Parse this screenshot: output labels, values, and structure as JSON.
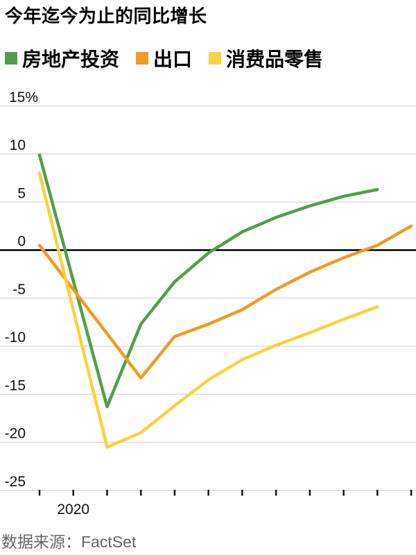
{
  "page": {
    "title": "今年迄今为止的同比增长",
    "source": "数据来源：FactSet"
  },
  "chart_data": {
    "type": "line",
    "title": "今年迄今为止的同比增长",
    "legend_position": "top",
    "grid": "horizontal",
    "background": "#ffffff",
    "y_axis": {
      "unit": "%",
      "tick_labels": [
        "15%",
        "10",
        "5",
        "0",
        "-5",
        "-10",
        "-15",
        "-20",
        "-25"
      ],
      "tick_values": [
        15,
        10,
        5,
        0,
        -5,
        -10,
        -15,
        -20,
        -25
      ],
      "range": [
        -25,
        15
      ],
      "zero_baseline_color": "#000000",
      "gridline_color": "#dcdcdc"
    },
    "x_axis": {
      "tick_count": 12,
      "year_label": "2020",
      "year_label_tick_index": 1,
      "tick_meaning_estimate": "monthly ticks, Dec 2019 through Nov 2020"
    },
    "series": [
      {
        "id": "real-estate-investment",
        "name": "房地产投资",
        "color": "#529e4c",
        "points": [
          [
            0,
            9.9
          ],
          [
            2,
            -16.3
          ],
          [
            3,
            -7.7
          ],
          [
            4,
            -3.3
          ],
          [
            5,
            -0.3
          ],
          [
            6,
            1.9
          ],
          [
            7,
            3.4
          ],
          [
            8,
            4.6
          ],
          [
            9,
            5.6
          ],
          [
            10,
            6.3
          ]
        ]
      },
      {
        "id": "exports",
        "name": "出口",
        "color": "#f09b23",
        "points": [
          [
            0,
            0.5
          ],
          [
            3,
            -13.3
          ],
          [
            4,
            -9.0
          ],
          [
            5,
            -7.7
          ],
          [
            6,
            -6.2
          ],
          [
            7,
            -4.1
          ],
          [
            8,
            -2.3
          ],
          [
            9,
            -0.8
          ],
          [
            10,
            0.5
          ],
          [
            11,
            2.5
          ]
        ]
      },
      {
        "id": "consumer-goods-retail",
        "name": "消费品零售",
        "color": "#f8d23f",
        "points": [
          [
            0,
            8.0
          ],
          [
            2,
            -20.5
          ],
          [
            3,
            -19.0
          ],
          [
            4,
            -16.2
          ],
          [
            5,
            -13.5
          ],
          [
            6,
            -11.4
          ],
          [
            7,
            -9.9
          ],
          [
            8,
            -8.6
          ],
          [
            9,
            -7.2
          ],
          [
            10,
            -5.9
          ]
        ]
      }
    ]
  }
}
